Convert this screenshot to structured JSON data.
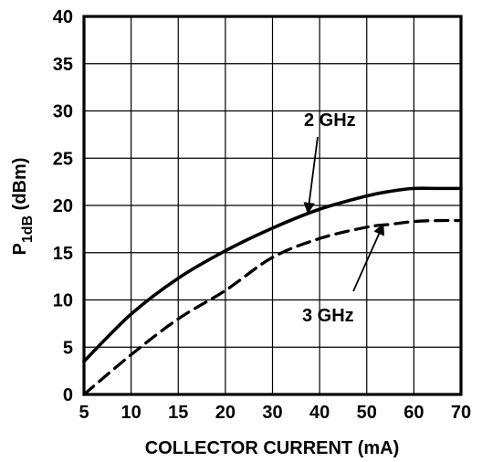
{
  "chart_data": {
    "type": "line",
    "title": "",
    "xlabel": "COLLECTOR CURRENT (mA)",
    "ylabel": {
      "main": "P",
      "subscript": "1dB",
      "suffix": " (dBm)"
    },
    "x_ticks": [
      "5",
      "10",
      "15",
      "20",
      "30",
      "40",
      "50",
      "60",
      "70"
    ],
    "y_ticks": [
      "0",
      "5",
      "10",
      "15",
      "20",
      "25",
      "30",
      "35",
      "40"
    ],
    "ylim": [
      0,
      40
    ],
    "grid": true,
    "legend": "none",
    "series": [
      {
        "name": "2 GHz",
        "style": "solid",
        "x": [
          5,
          10,
          15,
          20,
          30,
          40,
          50,
          55,
          60,
          65,
          70
        ],
        "y": [
          3.5,
          8.5,
          12.3,
          15.2,
          17.6,
          19.6,
          21.0,
          21.5,
          21.8,
          21.8,
          21.8
        ]
      },
      {
        "name": "3 GHz",
        "style": "dashed",
        "x": [
          5,
          10,
          15,
          20,
          30,
          40,
          50,
          55,
          60,
          65,
          70
        ],
        "y": [
          0.0,
          4.2,
          8.0,
          11.0,
          14.5,
          16.5,
          17.7,
          18.0,
          18.3,
          18.4,
          18.4
        ]
      }
    ],
    "annotations": [
      {
        "text": "2 GHz",
        "target_series": "2 GHz",
        "target_x": 37.5,
        "target_y": 19.2
      },
      {
        "text": "3 GHz",
        "target_series": "3 GHz",
        "target_x": 53.5,
        "target_y": 18.0
      }
    ]
  }
}
